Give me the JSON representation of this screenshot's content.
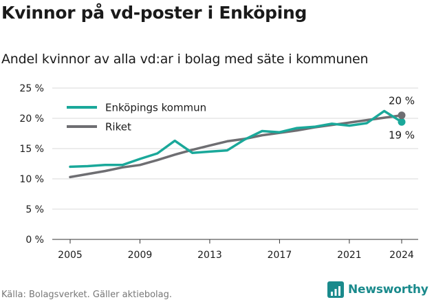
{
  "header": {
    "title": "Kvinnor på vd-poster i Enköping",
    "subtitle": "Andel kvinnor av alla vd:ar i bolag med säte i kommunen"
  },
  "footer": {
    "source": "Källa: Bolagsverket. Gäller aktiebolag.",
    "brand": "Newsworthy"
  },
  "colors": {
    "enkoping": "#1aa89a",
    "riket": "#6e6e72",
    "grid": "#d9d9d9",
    "brand": "#1a8a8c"
  },
  "chart_data": {
    "type": "line",
    "title": "Kvinnor på vd-poster i Enköping",
    "subtitle": "Andel kvinnor av alla vd:ar i bolag med säte i kommunen",
    "xlabel": "",
    "ylabel": "",
    "x": [
      2005,
      2006,
      2007,
      2008,
      2009,
      2010,
      2011,
      2012,
      2013,
      2014,
      2015,
      2016,
      2017,
      2018,
      2019,
      2020,
      2021,
      2022,
      2023,
      2024
    ],
    "xticks": [
      2005,
      2009,
      2013,
      2017,
      2021,
      2024
    ],
    "xtick_labels": [
      "2005",
      "2009",
      "2013",
      "2017",
      "2021",
      "2024"
    ],
    "ylim": [
      0,
      25
    ],
    "yticks": [
      0,
      5,
      10,
      15,
      20,
      25
    ],
    "ytick_labels": [
      "0 %",
      "5 %",
      "10 %",
      "15 %",
      "20 %",
      "25 %"
    ],
    "grid": true,
    "legend_position": "top-left",
    "series": [
      {
        "name": "Enköpings kommun",
        "color": "#1aa89a",
        "values": [
          12.0,
          12.1,
          12.3,
          12.3,
          13.3,
          14.2,
          16.3,
          14.3,
          14.5,
          14.7,
          16.5,
          17.9,
          17.7,
          18.4,
          18.6,
          19.1,
          18.8,
          19.2,
          21.2,
          19.4
        ],
        "end_label": "19 %"
      },
      {
        "name": "Riket",
        "color": "#6e6e72",
        "values": [
          10.3,
          10.8,
          11.3,
          11.9,
          12.3,
          13.1,
          14.0,
          14.8,
          15.5,
          16.2,
          16.6,
          17.2,
          17.6,
          18.0,
          18.5,
          18.9,
          19.3,
          19.7,
          20.1,
          20.5
        ],
        "end_label": "20 %"
      }
    ]
  }
}
